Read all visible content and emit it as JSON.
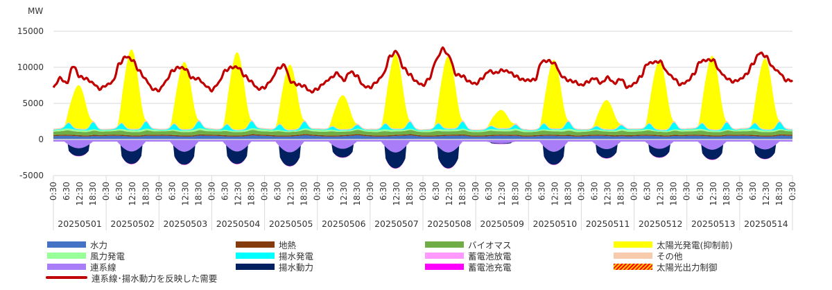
{
  "chart_data": {
    "type": "area",
    "unit_label": "MW",
    "ylim": [
      -5000,
      15000
    ],
    "yticks": [
      15000,
      10000,
      5000,
      0,
      -5000
    ],
    "time_ticks": [
      "0:30",
      "6:30",
      "12:30",
      "18:30"
    ],
    "final_tick": "0:30",
    "days": [
      "20250501",
      "20250502",
      "20250503",
      "20250504",
      "20250505",
      "20250506",
      "20250507",
      "20250508",
      "20250509",
      "20250510",
      "20250511",
      "20250512",
      "20250513",
      "20250514"
    ],
    "solar_peak": [
      6000,
      11000,
      9300,
      10700,
      9000,
      4700,
      10300,
      10000,
      2500,
      9500,
      4000,
      9500,
      10200,
      9800
    ],
    "pumping_charge_min": [
      -2300,
      -3400,
      -3500,
      -3400,
      -3700,
      -2500,
      -4000,
      -4000,
      -600,
      -3500,
      -2600,
      -2500,
      -2800,
      -2700
    ],
    "demand_3h": [
      [
        7200,
        8500,
        7800,
        10200,
        8700,
        8400,
        7800,
        7000
      ],
      [
        7500,
        8000,
        10500,
        11500,
        11000,
        9500,
        8300,
        7000
      ],
      [
        6800,
        8000,
        9500,
        10000,
        9800,
        8500,
        8400,
        7500
      ],
      [
        6800,
        7800,
        9500,
        10000,
        10000,
        8800,
        8000,
        7000
      ],
      [
        7200,
        8200,
        9800,
        10300,
        8000,
        7600,
        7400,
        6600
      ],
      [
        7000,
        7800,
        8500,
        9200,
        8200,
        9400,
        8800,
        7400
      ],
      [
        7200,
        8000,
        9000,
        11500,
        12200,
        10000,
        9000,
        8000
      ],
      [
        7500,
        8500,
        11000,
        12600,
        11500,
        9000,
        8800,
        8000
      ],
      [
        7700,
        8500,
        9500,
        9200,
        9600,
        9400,
        8800,
        8300
      ],
      [
        8200,
        8300,
        10800,
        10900,
        10500,
        8800,
        8200,
        8000
      ],
      [
        7500,
        8000,
        8500,
        7800,
        8600,
        7800,
        8400,
        7200
      ],
      [
        7700,
        8700,
        10500,
        10700,
        10800,
        9300,
        8500,
        7600
      ],
      [
        8000,
        9000,
        10800,
        11000,
        11000,
        9400,
        8500,
        8000
      ],
      [
        8300,
        9000,
        10500,
        12000,
        11500,
        10000,
        9300,
        8200
      ]
    ],
    "demand_end": 8200,
    "series": [
      {
        "key": "hydro",
        "name": "水力",
        "color": "#4472c4"
      },
      {
        "key": "geothermal",
        "name": "地熱",
        "color": "#843c0c"
      },
      {
        "key": "biomass",
        "name": "バイオマス",
        "color": "#70ad47"
      },
      {
        "key": "solar",
        "name": "太陽光発電(抑制前)",
        "color": "#ffff00"
      },
      {
        "key": "wind",
        "name": "風力発電",
        "color": "#99ff99"
      },
      {
        "key": "pumped_gen",
        "name": "揚水発電",
        "color": "#00ffff"
      },
      {
        "key": "battery_dis",
        "name": "蓄電池放電",
        "color": "#ff99ff"
      },
      {
        "key": "other",
        "name": "その他",
        "color": "#f8cbad"
      },
      {
        "key": "interconnect",
        "name": "連系線",
        "color": "#a97cf8"
      },
      {
        "key": "pumped_load",
        "name": "揚水動力",
        "color": "#002060"
      },
      {
        "key": "battery_chg",
        "name": "蓄電池充電",
        "color": "#ff00ff"
      },
      {
        "key": "curtail",
        "name": "太陽光出力制御",
        "color": "#ff0000"
      }
    ],
    "demand_series": {
      "name": "連系線･揚水動力を反映した需要",
      "color": "#c00000"
    }
  }
}
